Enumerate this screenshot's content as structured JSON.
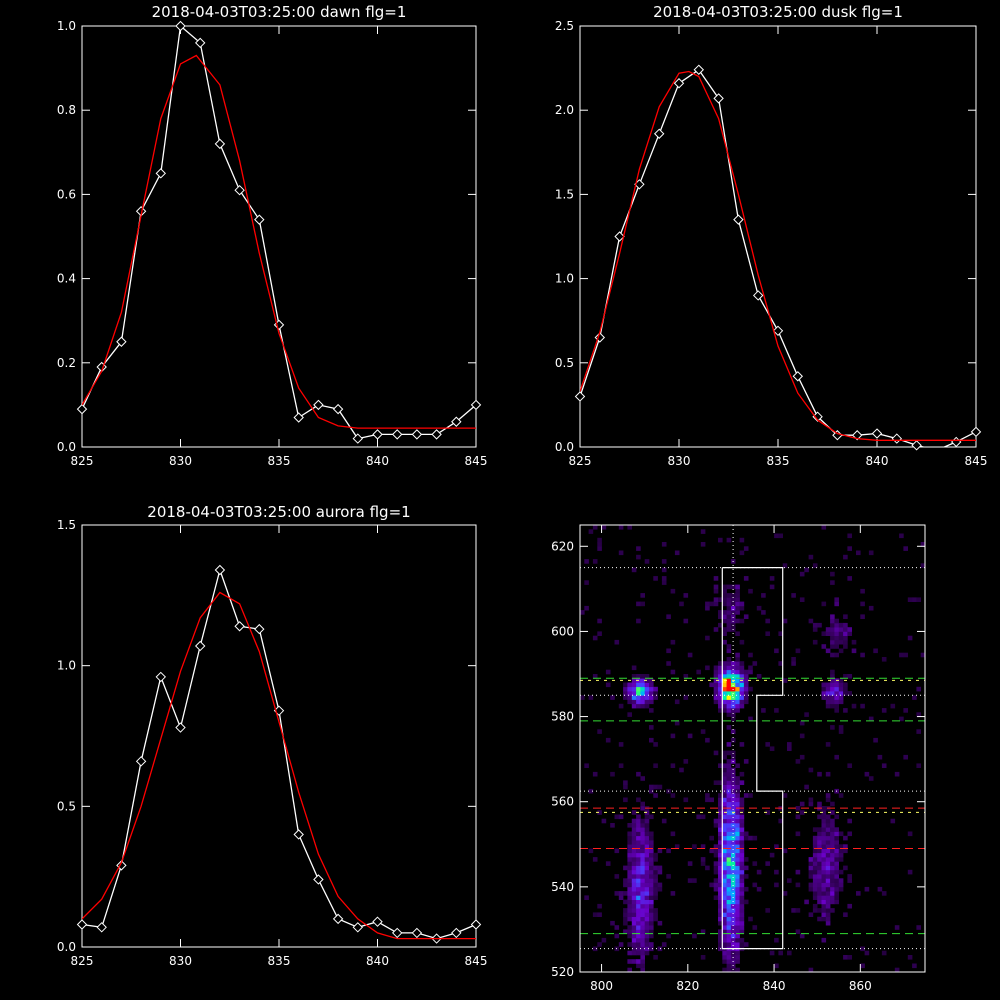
{
  "chart_data": [
    {
      "type": "line",
      "title": "2018-04-03T03:25:00 dawn flg=1",
      "xlim": [
        825,
        845
      ],
      "ylim": [
        0,
        1.0
      ],
      "xticks": [
        "825",
        "830",
        "835",
        "840",
        "845"
      ],
      "yticks": [
        "0.0",
        "0.2",
        "0.4",
        "0.6",
        "0.8",
        "1.0"
      ],
      "colors": {
        "data": "#ffffff",
        "fit": "#ff0000"
      },
      "series": [
        {
          "role": "data",
          "marker": "diamond",
          "x": [
            825,
            826,
            827,
            828,
            829,
            830,
            831,
            832,
            833,
            834,
            835,
            836,
            837,
            838,
            839,
            840,
            841,
            842,
            843,
            844,
            845
          ],
          "y": [
            0.09,
            0.19,
            0.25,
            0.56,
            0.65,
            1.0,
            0.96,
            0.72,
            0.61,
            0.54,
            0.29,
            0.07,
            0.1,
            0.09,
            0.02,
            0.03,
            0.03,
            0.03,
            0.03,
            0.06,
            0.1
          ]
        },
        {
          "role": "fit",
          "x": [
            825,
            826,
            827,
            828,
            829,
            830,
            830.8,
            832,
            833,
            834,
            835,
            836,
            837,
            838,
            839,
            840,
            841,
            842,
            843,
            844,
            845
          ],
          "y": [
            0.1,
            0.18,
            0.32,
            0.55,
            0.78,
            0.91,
            0.93,
            0.86,
            0.68,
            0.46,
            0.27,
            0.14,
            0.07,
            0.05,
            0.045,
            0.045,
            0.045,
            0.045,
            0.045,
            0.045,
            0.045
          ]
        }
      ]
    },
    {
      "type": "line",
      "title": "2018-04-03T03:25:00 dusk flg=1",
      "xlim": [
        825,
        845
      ],
      "ylim": [
        0,
        2.5
      ],
      "xticks": [
        "825",
        "830",
        "835",
        "840",
        "845"
      ],
      "yticks": [
        "0.0",
        "0.5",
        "1.0",
        "1.5",
        "2.0",
        "2.5"
      ],
      "colors": {
        "data": "#ffffff",
        "fit": "#ff0000"
      },
      "series": [
        {
          "role": "data",
          "marker": "diamond",
          "x": [
            825,
            826,
            827,
            828,
            829,
            830,
            831,
            832,
            833,
            834,
            835,
            836,
            837,
            838,
            839,
            840,
            841,
            842,
            843,
            844,
            845
          ],
          "y": [
            0.3,
            0.65,
            1.25,
            1.56,
            1.86,
            2.16,
            2.24,
            2.07,
            1.35,
            0.9,
            0.69,
            0.42,
            0.18,
            0.07,
            0.07,
            0.08,
            0.05,
            0.01,
            -0.02,
            0.03,
            0.09
          ]
        },
        {
          "role": "fit",
          "x": [
            825,
            826,
            827,
            828,
            829,
            830,
            830.5,
            831,
            832,
            833,
            834,
            835,
            836,
            837,
            838,
            839,
            840,
            841,
            842,
            843,
            844,
            845
          ],
          "y": [
            0.33,
            0.68,
            1.15,
            1.65,
            2.02,
            2.22,
            2.23,
            2.2,
            1.95,
            1.5,
            1.02,
            0.6,
            0.32,
            0.16,
            0.08,
            0.05,
            0.04,
            0.04,
            0.04,
            0.04,
            0.04,
            0.04
          ]
        }
      ]
    },
    {
      "type": "line",
      "title": "2018-04-03T03:25:00 aurora flg=1",
      "xlim": [
        825,
        845
      ],
      "ylim": [
        0,
        1.5
      ],
      "xticks": [
        "825",
        "830",
        "835",
        "840",
        "845"
      ],
      "yticks": [
        "0.0",
        "0.5",
        "1.0",
        "1.5"
      ],
      "colors": {
        "data": "#ffffff",
        "fit": "#ff0000"
      },
      "series": [
        {
          "role": "data",
          "marker": "diamond",
          "x": [
            825,
            826,
            827,
            828,
            829,
            830,
            831,
            832,
            833,
            834,
            835,
            836,
            837,
            838,
            839,
            840,
            841,
            842,
            843,
            844,
            845
          ],
          "y": [
            0.08,
            0.07,
            0.29,
            0.66,
            0.96,
            0.78,
            1.07,
            1.34,
            1.14,
            1.13,
            0.84,
            0.4,
            0.24,
            0.1,
            0.07,
            0.09,
            0.05,
            0.05,
            0.03,
            0.05,
            0.08
          ]
        },
        {
          "role": "fit",
          "x": [
            825,
            826,
            827,
            828,
            829,
            830,
            831,
            832,
            833,
            834,
            835,
            836,
            837,
            838,
            839,
            840,
            841,
            842,
            843,
            844,
            845
          ],
          "y": [
            0.1,
            0.17,
            0.3,
            0.5,
            0.74,
            0.98,
            1.17,
            1.26,
            1.22,
            1.05,
            0.8,
            0.55,
            0.33,
            0.18,
            0.1,
            0.05,
            0.03,
            0.03,
            0.03,
            0.03,
            0.03
          ]
        }
      ]
    },
    {
      "type": "heatmap",
      "title": "",
      "xlim": [
        795,
        875
      ],
      "ylim": [
        520,
        625
      ],
      "xticks": [
        "800",
        "820",
        "840",
        "860"
      ],
      "yticks": [
        "520",
        "540",
        "560",
        "580",
        "600",
        "620"
      ],
      "colors": {
        "scale": [
          "#000000",
          "#3a0066",
          "#6a00c8",
          "#4a40ff",
          "#00b0ff",
          "#00ff90",
          "#ffff00",
          "#ff0000"
        ],
        "box": "#ffffff",
        "dotted": "#ffffff",
        "green_dash": "#33dd33",
        "red_dash": "#ff2020",
        "yellow_dash": "#ffff66"
      },
      "hotspots": [
        {
          "x": 830,
          "y": 587,
          "sx": 2.0,
          "sy": 3.0,
          "amp": 1.0
        },
        {
          "x": 809,
          "y": 586,
          "sx": 2.0,
          "sy": 2.0,
          "amp": 0.6
        },
        {
          "x": 830,
          "y": 545,
          "sx": 1.8,
          "sy": 14.0,
          "amp": 0.6
        },
        {
          "x": 809,
          "y": 540,
          "sx": 2.2,
          "sy": 12.0,
          "amp": 0.35
        },
        {
          "x": 854,
          "y": 586,
          "sx": 2.0,
          "sy": 2.0,
          "amp": 0.35
        },
        {
          "x": 852,
          "y": 545,
          "sx": 3.0,
          "sy": 10.0,
          "amp": 0.22
        },
        {
          "x": 855,
          "y": 600,
          "sx": 3.0,
          "sy": 4.0,
          "amp": 0.15
        },
        {
          "x": 830,
          "y": 605,
          "sx": 2.5,
          "sy": 6.0,
          "amp": 0.15
        }
      ],
      "boxes": [
        [
          [
            828,
            615
          ],
          [
            842,
            615
          ],
          [
            842,
            585
          ],
          [
            836,
            585
          ],
          [
            836,
            562.5
          ],
          [
            842,
            562.5
          ],
          [
            842,
            525.5
          ],
          [
            828,
            525.5
          ],
          [
            828,
            615
          ]
        ]
      ],
      "vlines": [
        {
          "x": 830.5,
          "style": "dotted"
        }
      ],
      "hlines": [
        {
          "y": 615,
          "style": "dotted"
        },
        {
          "y": 589,
          "style": "green_dash"
        },
        {
          "y": 588.5,
          "style": "yellow_dash"
        },
        {
          "y": 585,
          "style": "dotted"
        },
        {
          "y": 579,
          "style": "green_dash"
        },
        {
          "y": 562.5,
          "style": "dotted"
        },
        {
          "y": 558.5,
          "style": "red_dash"
        },
        {
          "y": 557.5,
          "style": "yellow_dash"
        },
        {
          "y": 549,
          "style": "red_dash"
        },
        {
          "y": 529,
          "style": "green_dash"
        },
        {
          "y": 525.5,
          "style": "dotted"
        }
      ]
    }
  ]
}
